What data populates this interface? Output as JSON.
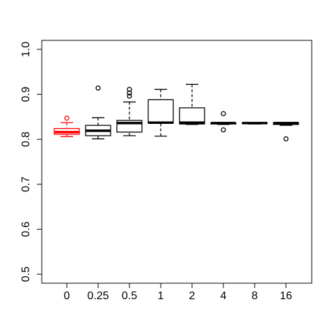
{
  "chart_data": {
    "type": "boxplot",
    "categories": [
      "0",
      "0.25",
      "0.5",
      "1",
      "2",
      "4",
      "8",
      "16"
    ],
    "colors": [
      "#ff0000",
      "#000000",
      "#000000",
      "#000000",
      "#000000",
      "#000000",
      "#000000",
      "#000000"
    ],
    "boxes": [
      {
        "whislo": 0.806,
        "q1": 0.811,
        "med": 0.816,
        "q3": 0.824,
        "whishi": 0.837,
        "fliers": [
          0.847
        ]
      },
      {
        "whislo": 0.801,
        "q1": 0.808,
        "med": 0.819,
        "q3": 0.831,
        "whishi": 0.848,
        "fliers": [
          0.914
        ]
      },
      {
        "whislo": 0.808,
        "q1": 0.816,
        "med": 0.836,
        "q3": 0.842,
        "whishi": 0.883,
        "fliers": [
          0.911,
          0.903,
          0.896
        ]
      },
      {
        "whislo": 0.807,
        "q1": 0.836,
        "med": 0.837,
        "q3": 0.888,
        "whishi": 0.911,
        "fliers": []
      },
      {
        "whislo": 0.833,
        "q1": 0.834,
        "med": 0.837,
        "q3": 0.87,
        "whishi": 0.922,
        "fliers": []
      },
      {
        "whislo": 0.833,
        "q1": 0.834,
        "med": 0.836,
        "q3": 0.836,
        "whishi": 0.837,
        "fliers": [
          0.857,
          0.821
        ]
      },
      {
        "whislo": 0.834,
        "q1": 0.835,
        "med": 0.836,
        "q3": 0.836,
        "whishi": 0.837,
        "fliers": []
      },
      {
        "whislo": 0.831,
        "q1": 0.833,
        "med": 0.836,
        "q3": 0.837,
        "whishi": 0.837,
        "fliers": [
          0.801
        ]
      }
    ],
    "ylim": [
      0.48,
      1.02
    ],
    "yticks": [
      {
        "value": 0.5,
        "label": "0.5"
      },
      {
        "value": 0.6,
        "label": "0.6"
      },
      {
        "value": 0.7,
        "label": "0.7"
      },
      {
        "value": 0.8,
        "label": "0.8"
      },
      {
        "value": 0.9,
        "label": "0.9"
      },
      {
        "value": 1.0,
        "label": "1.0"
      }
    ]
  }
}
